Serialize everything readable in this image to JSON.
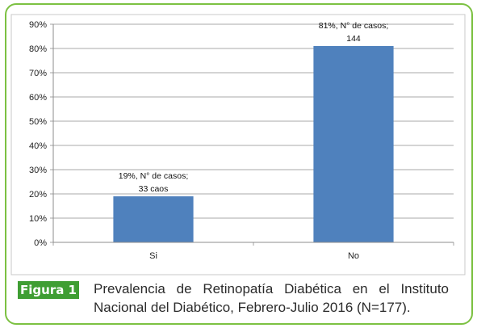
{
  "chart_data": {
    "type": "bar",
    "categories": [
      "Si",
      "No"
    ],
    "values": [
      19,
      81
    ],
    "value_unit": "%",
    "data_labels": [
      [
        "19%, N° de casos;",
        "33 caos"
      ],
      [
        "81%, N° de casos;",
        "144"
      ]
    ],
    "ylim": [
      0,
      90
    ],
    "y_ticks": [
      "0%",
      "10%",
      "20%",
      "30%",
      "40%",
      "50%",
      "60%",
      "70%",
      "80%",
      "90%"
    ],
    "grid": "horizontal",
    "bar_color": "#4f81bd"
  },
  "caption": {
    "label": "Figura 1",
    "text": "Prevalencia de Retinopatía Diabética en el Instituto Nacional del Diabético, Febrero-Julio 2016 (N=177).",
    "label_color": "#3f9e33",
    "border_color": "#7cc142"
  }
}
